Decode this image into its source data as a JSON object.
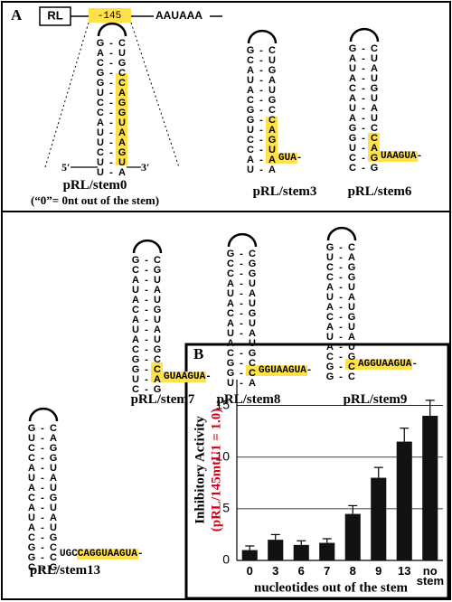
{
  "panel_a": {
    "label": "A",
    "construct": {
      "box": "RL",
      "site": "-145",
      "signal": "AAUAAA"
    },
    "stems": [
      {
        "name": "pRL/stem0",
        "note": "(“0”= 0nt out of the stem)",
        "left": "GACGGUCCAUUCUU",
        "pairs": "--------------",
        "right": "CUGCCAGGUAAGUA",
        "five": "5′",
        "three": "3′"
      },
      {
        "name": "pRL/stem3",
        "left": "GCAUACGGUCCAU",
        "pairs": "-------------",
        "right": "CUGAUGCCAGUAA",
        "tail": "GUA-"
      },
      {
        "name": "pRL/stem6",
        "left": "GAUACAUAGGUCC",
        "pairs": "-------------",
        "right": "CUAUGUAUCCAGG",
        "tail": "UAAGUA-"
      },
      {
        "name": "pRL/stem7",
        "left": "GCAUACAUACGGUC",
        "pairs": "--------------",
        "right": "CGUAUGUAUGCCAG",
        "tail": "GUAAGUA-"
      },
      {
        "name": "pRL/stem8",
        "left": "GCCAUACAUACGGU",
        "pairs": "--------------",
        "right": "CGGUAUGUAUGCCA",
        "tail": "GGUAAGUA-"
      },
      {
        "name": "pRL/stem9",
        "left": "GUCCAUACAUACGG",
        "pairs": "--------------",
        "right": "CAGGUAUGUAUGCC",
        "tail": "AGGUAAGUA-"
      },
      {
        "name": "pRL/stem13",
        "left": "GUCCAUACAUACGGC",
        "pairs": "---------------",
        "right": "CAGGUAUGUAUGCCG",
        "tail": "UGCCAGGUAAGUA-"
      }
    ]
  },
  "chart_data": {
    "type": "bar",
    "panel": "B",
    "ylabel": "Inhibitory Activity",
    "ylabel_note": "(pRL/145mtU1 = 1.0)",
    "ylabel_note_color": "#d0021b",
    "xlabel": "nucleotides out of the stem",
    "categories": [
      "0",
      "3",
      "6",
      "7",
      "8",
      "9",
      "13",
      "no stem"
    ],
    "series": [
      {
        "color": "#111111",
        "values": [
          1,
          2,
          1.5,
          1.7,
          4.5,
          8,
          11.5,
          14
        ],
        "errors": [
          0.4,
          0.5,
          0.4,
          0.4,
          0.8,
          1.0,
          1.3,
          1.5
        ]
      }
    ],
    "ylim": [
      0,
      17.5
    ],
    "yticks": [
      0,
      5,
      10,
      15
    ],
    "grid": true
  }
}
